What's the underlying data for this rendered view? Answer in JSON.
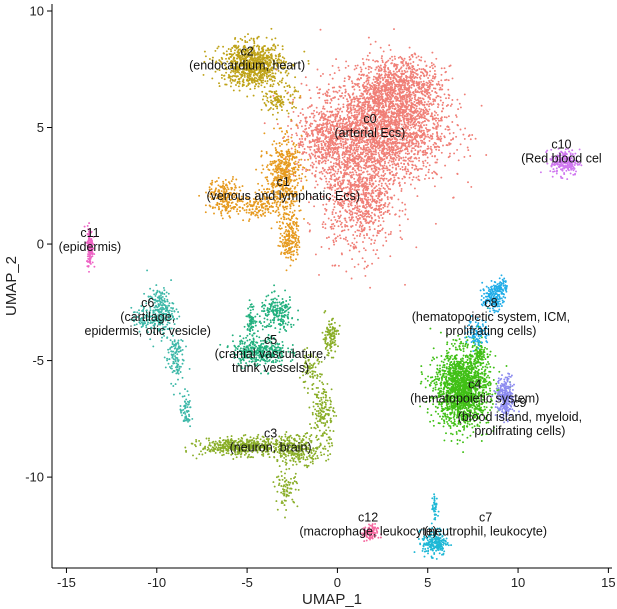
{
  "chart_data": {
    "type": "scatter",
    "title": "",
    "xlabel": "UMAP_1",
    "ylabel": "UMAP_2",
    "xlim": [
      -15.8,
      15.2
    ],
    "ylim": [
      -13.9,
      10.3
    ],
    "xticks": [
      -15,
      -10,
      -5,
      0,
      5,
      10,
      15
    ],
    "yticks": [
      -10,
      -5,
      0,
      5,
      10
    ],
    "grid": false,
    "legend": "none",
    "clusters": [
      {
        "id": "c0",
        "desc": "(arterial Ecs)",
        "color": "#F07F77",
        "label_x": 1.8,
        "label_y": 4.6,
        "blobs": [
          [
            2.5,
            5.0,
            2.8,
            1.9,
            2600
          ],
          [
            1.2,
            2.0,
            1.6,
            2.0,
            900
          ],
          [
            3.5,
            6.8,
            1.8,
            1.0,
            700
          ],
          [
            -0.5,
            4.5,
            1.5,
            1.2,
            500
          ]
        ]
      },
      {
        "id": "c2",
        "desc": "(endocardium, heart)",
        "color": "#BFA319",
        "label_x": -5.0,
        "label_y": 7.5,
        "blobs": [
          [
            -4.7,
            7.7,
            1.4,
            0.75,
            900
          ],
          [
            -3.2,
            6.2,
            0.7,
            0.5,
            120
          ]
        ]
      },
      {
        "id": "c1",
        "desc": "(venous and lymphatic Ecs)",
        "color": "#E69A1F",
        "label_x": -3.0,
        "label_y": 1.9,
        "blobs": [
          [
            -3.0,
            2.9,
            0.8,
            1.3,
            500
          ],
          [
            -2.6,
            0.3,
            0.4,
            0.9,
            200
          ],
          [
            -6.2,
            2.0,
            0.8,
            0.6,
            220
          ],
          [
            -4.4,
            1.6,
            0.9,
            0.5,
            150
          ]
        ]
      },
      {
        "id": "c10",
        "desc": "(Red blood cel",
        "color": "#CF77F0",
        "label_x": 12.4,
        "label_y": 3.5,
        "blobs": [
          [
            12.6,
            3.5,
            0.65,
            0.45,
            220
          ]
        ]
      },
      {
        "id": "c11",
        "desc": "(epidermis)",
        "color": "#EE64C5",
        "label_x": -13.7,
        "label_y": -0.3,
        "blobs": [
          [
            -13.7,
            -0.1,
            0.14,
            0.65,
            140
          ]
        ]
      },
      {
        "id": "c6",
        "desc": "(cartilage, epidermis, otic vesicle)",
        "color": "#3DB8A8",
        "label_x": -10.5,
        "label_y": -3.3,
        "blobs": [
          [
            -9.8,
            -2.9,
            0.6,
            0.8,
            250
          ],
          [
            -9.0,
            -4.8,
            0.4,
            0.9,
            120
          ],
          [
            -8.4,
            -7.2,
            0.25,
            0.6,
            60
          ],
          [
            -10.8,
            -3.2,
            0.5,
            0.4,
            60
          ]
        ]
      },
      {
        "id": "c5",
        "desc": "(cranial vasculature, trunk vessels)",
        "color": "#22B07E",
        "label_x": -3.7,
        "label_y": -4.9,
        "blobs": [
          [
            -4.3,
            -4.6,
            1.2,
            0.5,
            380
          ],
          [
            -3.3,
            -3.0,
            0.8,
            0.6,
            200
          ],
          [
            -4.8,
            -3.2,
            0.2,
            0.5,
            70
          ]
        ]
      },
      {
        "id": "c3",
        "desc": "(neuron, brain)",
        "color": "#8AAE28",
        "label_x": -3.7,
        "label_y": -8.9,
        "blobs": [
          [
            -5.3,
            -8.7,
            1.8,
            0.3,
            500
          ],
          [
            -2.2,
            -8.8,
            1.2,
            0.5,
            300
          ],
          [
            -0.8,
            -7.2,
            0.5,
            1.0,
            150
          ],
          [
            -0.4,
            -4.0,
            0.35,
            0.6,
            120
          ],
          [
            -1.5,
            -5.5,
            0.5,
            0.6,
            80
          ],
          [
            -2.8,
            -10.5,
            0.5,
            0.6,
            80
          ]
        ]
      },
      {
        "id": "c4",
        "desc": "(hematopoietic system)",
        "color": "#40C016",
        "label_x": 7.6,
        "label_y": -6.8,
        "blobs": [
          [
            6.9,
            -6.2,
            1.2,
            1.3,
            1700
          ],
          [
            7.8,
            -4.7,
            0.4,
            0.4,
            90
          ]
        ]
      },
      {
        "id": "c8",
        "desc": "(hematopoietic system, ICM, prolifrating cells)",
        "color": "#21ADE8",
        "label_x": 8.5,
        "label_y": -3.3,
        "blobs": [
          [
            8.6,
            -2.3,
            0.45,
            0.45,
            180
          ],
          [
            7.8,
            -3.8,
            0.5,
            0.5,
            100
          ],
          [
            9.1,
            -1.8,
            0.25,
            0.3,
            50
          ]
        ]
      },
      {
        "id": "c9",
        "desc": "(blood island, myeloid, prolifrating cells)",
        "color": "#8C8BF0",
        "label_x": 10.1,
        "label_y": -7.6,
        "blobs": [
          [
            9.3,
            -6.6,
            0.4,
            0.7,
            280
          ]
        ]
      },
      {
        "id": "c12",
        "desc": "(macrophage, leukocyte)",
        "color": "#F669A0",
        "label_x": 1.7,
        "label_y": -12.5,
        "blobs": [
          [
            1.8,
            -12.4,
            0.35,
            0.3,
            90
          ]
        ]
      },
      {
        "id": "c7",
        "desc": "(neutrophil, leukocyte)",
        "color": "#1EB8D6",
        "label_x": 8.2,
        "label_y": -12.5,
        "blobs": [
          [
            5.4,
            -12.8,
            0.55,
            0.45,
            220
          ],
          [
            5.4,
            -11.4,
            0.15,
            0.6,
            40
          ]
        ]
      }
    ]
  }
}
